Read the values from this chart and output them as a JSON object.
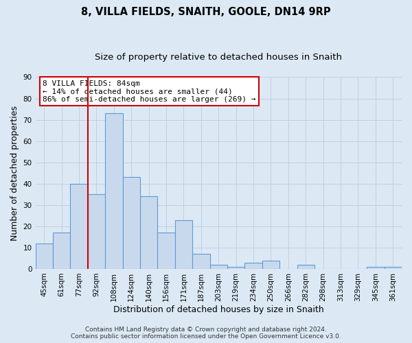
{
  "title": "8, VILLA FIELDS, SNAITH, GOOLE, DN14 9RP",
  "subtitle": "Size of property relative to detached houses in Snaith",
  "xlabel": "Distribution of detached houses by size in Snaith",
  "ylabel": "Number of detached properties",
  "bar_labels": [
    "45sqm",
    "61sqm",
    "77sqm",
    "92sqm",
    "108sqm",
    "124sqm",
    "140sqm",
    "156sqm",
    "171sqm",
    "187sqm",
    "203sqm",
    "219sqm",
    "234sqm",
    "250sqm",
    "266sqm",
    "282sqm",
    "298sqm",
    "313sqm",
    "329sqm",
    "345sqm",
    "361sqm"
  ],
  "bar_heights": [
    12,
    17,
    40,
    35,
    73,
    43,
    34,
    17,
    23,
    7,
    2,
    1,
    3,
    4,
    0,
    2,
    0,
    0,
    0,
    1,
    1
  ],
  "bar_color": "#c9d9ed",
  "bar_edge_color": "#5b9bd5",
  "bar_edge_width": 0.8,
  "vline_pos": 2.5,
  "vline_color": "#cc0000",
  "annotation_line1": "8 VILLA FIELDS: 84sqm",
  "annotation_line2": "← 14% of detached houses are smaller (44)",
  "annotation_line3": "86% of semi-detached houses are larger (269) →",
  "annotation_box_color": "#ffffff",
  "annotation_box_edge_color": "#cc0000",
  "ylim": [
    0,
    90
  ],
  "yticks": [
    0,
    10,
    20,
    30,
    40,
    50,
    60,
    70,
    80,
    90
  ],
  "grid_color": "#c0cfe0",
  "background_color": "#dce9f5",
  "footer_line1": "Contains HM Land Registry data © Crown copyright and database right 2024.",
  "footer_line2": "Contains public sector information licensed under the Open Government Licence v3.0.",
  "title_fontsize": 10.5,
  "subtitle_fontsize": 9.5,
  "axis_label_fontsize": 9,
  "tick_fontsize": 7.5,
  "annotation_fontsize": 8,
  "footer_fontsize": 6.5
}
